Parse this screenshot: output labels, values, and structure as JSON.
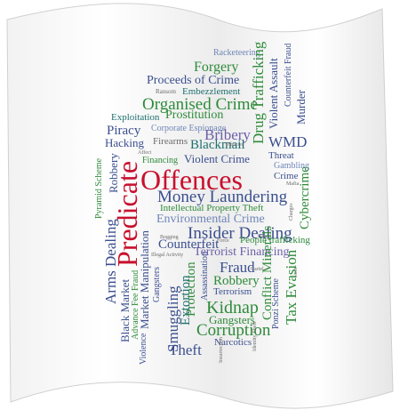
{
  "colors": {
    "red": "#c8102e",
    "blue": "#3b4f8f",
    "green": "#2e8b3a",
    "gray": "#6b6b6b",
    "teal": "#1f6f6f",
    "purple": "#6c5fa8",
    "lightblue": "#6f86b8"
  },
  "cloud": {
    "predicate": "Predicate",
    "offences": "Offences",
    "racketeering": "Racketeering",
    "forgery": "Forgery",
    "proceeds_of_crime": "Proceeds of Crime",
    "ransom": "Ransom",
    "embezzlement": "Embezzlement",
    "organised_crime": "Organised Crime",
    "exploitation": "Exploitation",
    "prostitution": "Prostitution",
    "piracy": "Piracy",
    "corporate_espionage": "Corporate Espionage",
    "hacking": "Hacking",
    "firearms": "Firearms",
    "bribery": "Bribery",
    "blackmail": "Blackmail",
    "tobacco": "Tobacco",
    "financing": "Financing",
    "violent_crime": "Violent Crime",
    "drug_trafficking": "Drug Trafficking",
    "violent_assault": "Violent Assault",
    "counterfeit_fraud": "Counterfeit Fraud",
    "murder": "Murder",
    "wmd": "WMD",
    "threat": "Threat",
    "gambling": "Gambling",
    "crime": "Crime",
    "cybercrime": "Cybercrime",
    "pyramid_scheme": "Pyramid Scheme",
    "robbery_left": "Robbery",
    "money_laundering": "Money Laundering",
    "intellectual_property_theft": "Intellectual Property Theft",
    "environmental_crime": "Environmental Crime",
    "insider_dealing": "Insider Dealing",
    "counterfeit": "Counterfeit",
    "people_trafficking": "People trafficking",
    "terrorist_financing": "Terrorist Financing",
    "arms_dealing": "Arms Dealing",
    "market_manipulation": "Market Manipulation",
    "fraud": "Fraud",
    "robbery": "Robbery",
    "terrorism": "Terrorism",
    "black_market": "Black Market",
    "smuggling": "Smuggling",
    "gangsters_small": "Gangsters",
    "protection": "Protection",
    "assassination": "Assassination",
    "conflict_minerals": "Conflict Minerals",
    "tax_evasion": "Tax Evasion",
    "advance_fee_fraud": "Advance Fee Fraud",
    "extortion": "Extortion",
    "kidnap": "Kidnap",
    "gangsters": "Gangsters",
    "ponzi_scheme": "Ponzi Scheme",
    "corruption": "Corruption",
    "narcotics": "Narcotics",
    "theft": "Theft",
    "violence": "Violence",
    "identity_theft": "Identity Theft",
    "illegal_activity": "Illegal Activity",
    "insurrection": "Insurrection",
    "affect": "Affect",
    "mafia": "Mafia",
    "cartel": "Cartel",
    "charges": "Charges",
    "force": "Force",
    "law": "Law",
    "bogging": "Bogging",
    "loot": "Loot"
  }
}
